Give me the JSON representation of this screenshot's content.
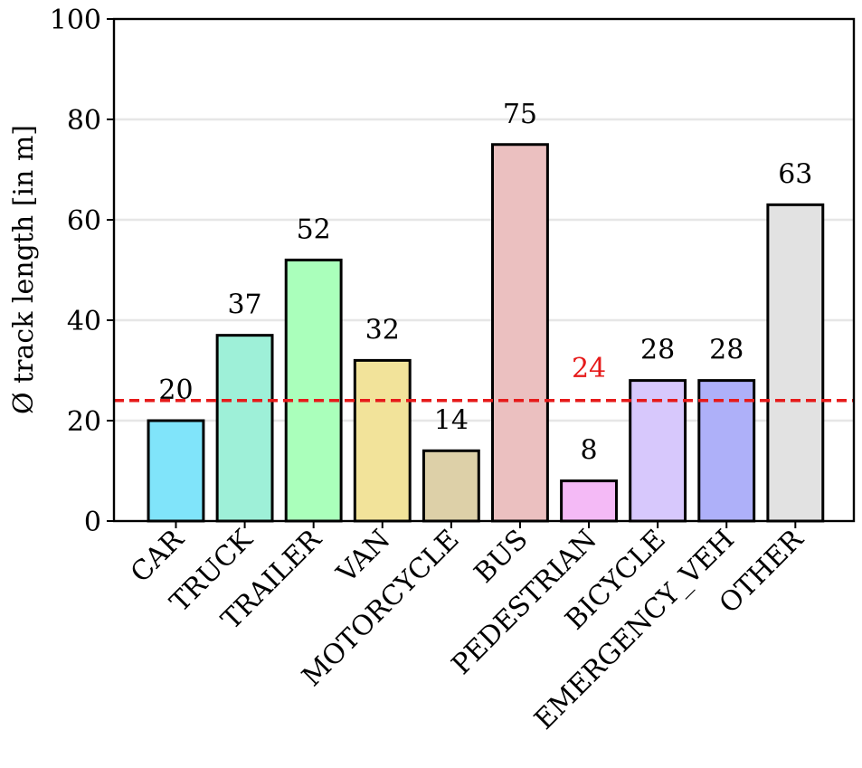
{
  "chart_data": {
    "type": "bar",
    "title": "",
    "xlabel": "",
    "ylabel": "Ø track length [in m]",
    "ylim": [
      0,
      100
    ],
    "yticks": [
      0,
      20,
      40,
      60,
      80,
      100
    ],
    "grid": "horizontal",
    "categories": [
      "CAR",
      "TRUCK",
      "TRAILER",
      "VAN",
      "MOTORCYCLE",
      "BUS",
      "PEDESTRIAN",
      "BICYCLE",
      "EMERGENCY_VEH",
      "OTHER"
    ],
    "values": [
      20,
      37,
      52,
      32,
      14,
      75,
      8,
      28,
      28,
      63
    ],
    "value_labels": [
      "20",
      "37",
      "52",
      "32",
      "14",
      "75",
      "8",
      "28",
      "28",
      "63"
    ],
    "bar_colors": [
      "#80e4fa",
      "#9ef0d8",
      "#aaffbb",
      "#f2e39a",
      "#ddd0a8",
      "#ebc0c0",
      "#f4baf6",
      "#d7c8fc",
      "#aeb0f9",
      "#e2e2e2"
    ],
    "mean_line": {
      "value": 24,
      "label": "24",
      "color": "#e61a1a",
      "style": "dashed"
    }
  }
}
